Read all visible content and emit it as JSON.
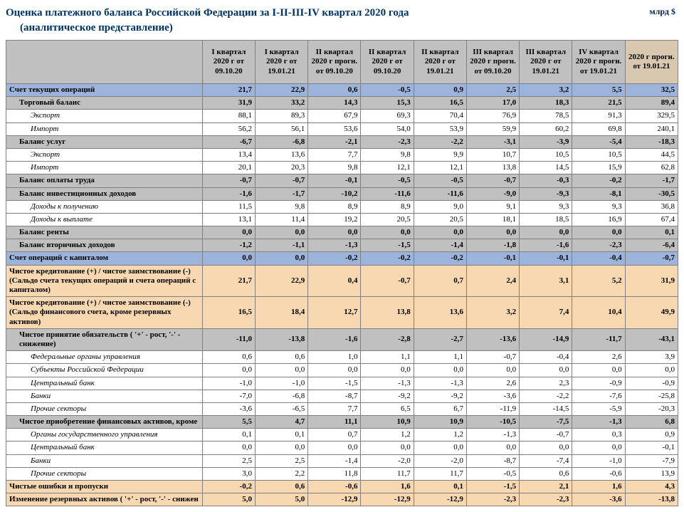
{
  "title_main": "Оценка платежного баланса Российской Федерации за I-II-III-IV квартал 2020 года",
  "title_sub": "(аналитическое представление)",
  "unit_label": "млрд $",
  "headers": [
    "I квартал 2020 г  от 09.10.20",
    "I квартал 2020 г от 19.01.21",
    "II квартал 2020 г прогн. от 09.10.20",
    "II квартал 2020 г от 09.10.20",
    "II квартал 2020 г от 19.01.21",
    "III квартал 2020 г прогн. от 09.10.20",
    "III квартал 2020 г от 19.01.21",
    "IV квартал 2020 г прогн. от 19.01.21",
    "2020 г прогн. от 19.01.21"
  ],
  "rows": [
    {
      "label": "Счет текущих операций",
      "ind": 0,
      "cls": "row-blue bold",
      "v": [
        "21,7",
        "22,9",
        "0,6",
        "-0,5",
        "0,9",
        "2,5",
        "3,2",
        "5,5",
        "32,5"
      ]
    },
    {
      "label": "Торговый баланс",
      "ind": 1,
      "cls": "row-gray bold",
      "v": [
        "31,9",
        "33,2",
        "14,3",
        "15,3",
        "16,5",
        "17,0",
        "18,3",
        "21,5",
        "89,4"
      ]
    },
    {
      "label": "Экспорт",
      "ind": 2,
      "cls": "",
      "v": [
        "88,1",
        "89,3",
        "67,9",
        "69,3",
        "70,4",
        "76,9",
        "78,5",
        "91,3",
        "329,5"
      ]
    },
    {
      "label": "Импорт",
      "ind": 2,
      "cls": "",
      "v": [
        "56,2",
        "56,1",
        "53,6",
        "54,0",
        "53,9",
        "59,9",
        "60,2",
        "69,8",
        "240,1"
      ]
    },
    {
      "label": "Баланс услуг",
      "ind": 1,
      "cls": "row-gray bold",
      "v": [
        "-6,7",
        "-6,8",
        "-2,1",
        "-2,3",
        "-2,2",
        "-3,1",
        "-3,9",
        "-5,4",
        "-18,3"
      ]
    },
    {
      "label": "Экспорт",
      "ind": 2,
      "cls": "",
      "v": [
        "13,4",
        "13,6",
        "7,7",
        "9,8",
        "9,9",
        "10,7",
        "10,5",
        "10,5",
        "44,5"
      ]
    },
    {
      "label": "Импорт",
      "ind": 2,
      "cls": "",
      "v": [
        "20,1",
        "20,3",
        "9,8",
        "12,1",
        "12,1",
        "13,8",
        "14,5",
        "15,9",
        "62,8"
      ]
    },
    {
      "label": "Баланс оплаты труда",
      "ind": 1,
      "cls": "row-gray bold",
      "v": [
        "-0,7",
        "-0,7",
        "-0,1",
        "-0,5",
        "-0,5",
        "-0,7",
        "-0,3",
        "-0,2",
        "-1,7"
      ]
    },
    {
      "label": "Баланс инвестиционных доходов",
      "ind": 1,
      "cls": "row-gray bold",
      "v": [
        "-1,6",
        "-1,7",
        "-10,2",
        "-11,6",
        "-11,6",
        "-9,0",
        "-9,3",
        "-8,1",
        "-30,5"
      ]
    },
    {
      "label": "Доходы к получению",
      "ind": 2,
      "cls": "",
      "v": [
        "11,5",
        "9,8",
        "8,9",
        "8,9",
        "9,0",
        "9,1",
        "9,3",
        "9,3",
        "36,8"
      ]
    },
    {
      "label": "Доходы к выплате",
      "ind": 2,
      "cls": "",
      "v": [
        "13,1",
        "11,4",
        "19,2",
        "20,5",
        "20,5",
        "18,1",
        "18,5",
        "16,9",
        "67,4"
      ]
    },
    {
      "label": "Баланс ренты",
      "ind": 1,
      "cls": "row-gray bold",
      "v": [
        "0,0",
        "0,0",
        "0,0",
        "0,0",
        "0,0",
        "0,0",
        "0,0",
        "0,0",
        "0,1"
      ]
    },
    {
      "label": "Баланс вторичных доходов",
      "ind": 1,
      "cls": "row-gray bold",
      "v": [
        "-1,2",
        "-1,1",
        "-1,3",
        "-1,5",
        "-1,4",
        "-1,8",
        "-1,6",
        "-2,3",
        "-6,4"
      ]
    },
    {
      "label": "Счет операций с капиталом",
      "ind": 0,
      "cls": "row-blue bold",
      "v": [
        "0,0",
        "0,0",
        "-0,2",
        "-0,2",
        "-0,2",
        "-0,1",
        "-0,1",
        "-0,4",
        "-0,7"
      ]
    },
    {
      "label": "Чистое кредитование (+) / чистое заимствование (-) (Сальдо счета текущих операций и счета операций с капиталом)",
      "ind": 0,
      "cls": "row-peach bold",
      "v": [
        "21,7",
        "22,9",
        "0,4",
        "-0,7",
        "0,7",
        "2,4",
        "3,1",
        "5,2",
        "31,9"
      ]
    },
    {
      "label": "Чистое кредитование (+) / чистое заимствование (-) (Сальдо финансового счета, кроме резервных активов)",
      "ind": 0,
      "cls": "row-peach bold",
      "v": [
        "16,5",
        "18,4",
        "12,7",
        "13,8",
        "13,6",
        "3,2",
        "7,4",
        "10,4",
        "49,9"
      ]
    },
    {
      "label": "Чистое принятие обязательств ( '+' - рост, '-' - снижение)",
      "ind": 1,
      "cls": "row-gray bold",
      "v": [
        "-11,0",
        "-13,8",
        "-1,6",
        "-2,8",
        "-2,7",
        "-13,6",
        "-14,9",
        "-11,7",
        "-43,1"
      ]
    },
    {
      "label": "Федеральные органы управления",
      "ind": 2,
      "cls": "",
      "v": [
        "0,6",
        "0,6",
        "1,0",
        "1,1",
        "1,1",
        "-0,7",
        "-0,4",
        "2,6",
        "3,9"
      ]
    },
    {
      "label": "Субъекты Российской Федерации",
      "ind": 2,
      "cls": "",
      "v": [
        "0,0",
        "0,0",
        "0,0",
        "0,0",
        "0,0",
        "0,0",
        "0,0",
        "0,0",
        "0,0"
      ]
    },
    {
      "label": "Центральный банк",
      "ind": 2,
      "cls": "",
      "v": [
        "-1,0",
        "-1,0",
        "-1,5",
        "-1,3",
        "-1,3",
        "2,6",
        "2,3",
        "-0,9",
        "-0,9"
      ]
    },
    {
      "label": "Банки",
      "ind": 2,
      "cls": "",
      "v": [
        "-7,0",
        "-6,8",
        "-8,7",
        "-9,2",
        "-9,2",
        "-3,6",
        "-2,2",
        "-7,6",
        "-25,8"
      ]
    },
    {
      "label": "Прочие секторы",
      "ind": 2,
      "cls": "",
      "v": [
        "-3,6",
        "-6,5",
        "7,7",
        "6,5",
        "6,7",
        "-11,9",
        "-14,5",
        "-5,9",
        "-20,3"
      ]
    },
    {
      "label": "Чистое приобретение финансовых активов, кроме",
      "ind": 1,
      "cls": "row-gray bold",
      "v": [
        "5,5",
        "4,7",
        "11,1",
        "10,9",
        "10,9",
        "-10,5",
        "-7,5",
        "-1,3",
        "6,8"
      ]
    },
    {
      "label": "Органы государственного управления",
      "ind": 2,
      "cls": "",
      "v": [
        "0,1",
        "0,1",
        "0,7",
        "1,2",
        "1,2",
        "-1,3",
        "-0,7",
        "0,3",
        "0,9"
      ]
    },
    {
      "label": "Центральный банк",
      "ind": 2,
      "cls": "",
      "v": [
        "0,0",
        "0,0",
        "0,0",
        "0,0",
        "0,0",
        "0,0",
        "0,0",
        "0,0",
        "-0,1"
      ]
    },
    {
      "label": "Банки",
      "ind": 2,
      "cls": "",
      "v": [
        "2,5",
        "2,5",
        "-1,4",
        "-2,0",
        "-2,0",
        "-8,7",
        "-7,4",
        "-1,0",
        "-7,9"
      ]
    },
    {
      "label": "Прочие секторы",
      "ind": 2,
      "cls": "",
      "v": [
        "3,0",
        "2,2",
        "11,8",
        "11,7",
        "11,7",
        "-0,5",
        "0,6",
        "-0,6",
        "13,9"
      ]
    },
    {
      "label": "Чистые ошибки и пропуски",
      "ind": 0,
      "cls": "row-peach bold",
      "v": [
        "-0,2",
        "0,6",
        "-0,6",
        "1,6",
        "0,1",
        "-1,5",
        "2,1",
        "1,6",
        "4,3"
      ]
    },
    {
      "label": "Изменение резервных активов ( '+' - рост, '-' - снижен",
      "ind": 0,
      "cls": "row-peach bold",
      "v": [
        "5,0",
        "5,0",
        "-12,9",
        "-12,9",
        "-12,9",
        "-2,3",
        "-2,3",
        "-3,6",
        "-13,8"
      ]
    }
  ]
}
